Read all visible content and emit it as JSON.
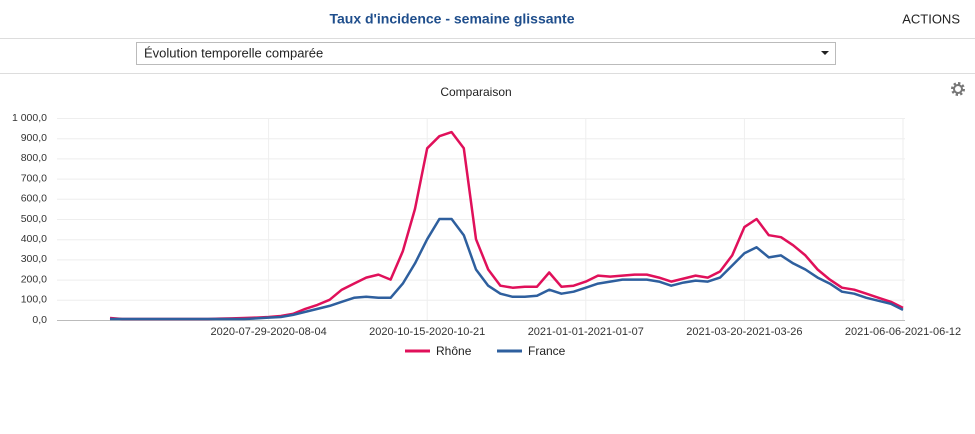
{
  "header": {
    "title": "Taux d'incidence - semaine glissante",
    "actions": "ACTIONS"
  },
  "selector": {
    "value": "Évolution temporelle comparée"
  },
  "chart_data": {
    "type": "line",
    "title": "Comparaison",
    "categories": [
      null,
      null,
      null,
      null,
      null,
      null,
      null,
      null,
      null,
      null,
      null,
      null,
      null,
      "2020-07-29-2020-08-04",
      null,
      null,
      null,
      null,
      null,
      null,
      null,
      null,
      null,
      null,
      null,
      null,
      "2020-10-15-2020-10-21",
      null,
      null,
      null,
      null,
      null,
      null,
      null,
      null,
      null,
      null,
      null,
      null,
      "2021-01-01-2021-01-07",
      null,
      null,
      null,
      null,
      null,
      null,
      null,
      null,
      null,
      null,
      null,
      null,
      "2021-03-20-2021-03-26",
      null,
      null,
      null,
      null,
      null,
      null,
      null,
      null,
      null,
      null,
      null,
      null,
      "2021-06-06-2021-06-12"
    ],
    "series": [
      {
        "name": "Rhône",
        "color": "#e0105a",
        "values": [
          10,
          5,
          5,
          5,
          5,
          5,
          5,
          5,
          5,
          7,
          8,
          10,
          12,
          15,
          20,
          30,
          55,
          75,
          100,
          150,
          180,
          210,
          225,
          200,
          340,
          550,
          850,
          910,
          930,
          850,
          400,
          250,
          170,
          160,
          165,
          165,
          235,
          165,
          170,
          190,
          220,
          215,
          220,
          225,
          225,
          210,
          190,
          205,
          220,
          210,
          240,
          320,
          460,
          500,
          420,
          410,
          370,
          320,
          250,
          200,
          160,
          150,
          130,
          110,
          90,
          60
        ]
      },
      {
        "name": "France",
        "color": "#2e5f9e",
        "values": [
          5,
          5,
          5,
          5,
          5,
          5,
          5,
          5,
          5,
          5,
          5,
          5,
          8,
          12,
          15,
          25,
          40,
          55,
          70,
          90,
          110,
          115,
          110,
          110,
          180,
          280,
          400,
          500,
          500,
          420,
          250,
          170,
          130,
          115,
          115,
          120,
          150,
          130,
          140,
          160,
          180,
          190,
          200,
          200,
          200,
          190,
          170,
          185,
          195,
          190,
          210,
          270,
          330,
          360,
          310,
          320,
          280,
          250,
          210,
          180,
          140,
          130,
          110,
          95,
          80,
          50
        ]
      }
    ],
    "ylim": [
      0,
      1000
    ],
    "yticks": [
      {
        "value": 0,
        "label": "0,0"
      },
      {
        "value": 100,
        "label": "100,0"
      },
      {
        "value": 200,
        "label": "200,0"
      },
      {
        "value": 300,
        "label": "300,0"
      },
      {
        "value": 400,
        "label": "400,0"
      },
      {
        "value": 500,
        "label": "500,0"
      },
      {
        "value": 600,
        "label": "600,0"
      },
      {
        "value": 700,
        "label": "700,0"
      },
      {
        "value": 800,
        "label": "800,0"
      },
      {
        "value": 900,
        "label": "900,0"
      },
      {
        "value": 1000,
        "label": "1 000,0"
      }
    ],
    "grid": true,
    "legend": "bottom"
  }
}
